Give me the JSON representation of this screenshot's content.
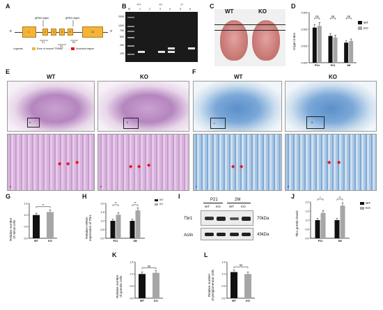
{
  "panels": {
    "A": "A",
    "B": "B",
    "C": "C",
    "D": "D",
    "E": "E",
    "F": "F",
    "G": "G",
    "H": "H",
    "I": "I",
    "J": "J",
    "K": "K",
    "L": "L"
  },
  "panelA": {
    "exons": [
      "1",
      "2",
      "3",
      "4",
      "5",
      "12"
    ],
    "grna1": "gRNA region",
    "grna2": "gRNA region",
    "primers": [
      "F1",
      "R1",
      "F2",
      "R2"
    ],
    "end5": "5'",
    "end3": "3'",
    "legend": [
      "Legends",
      "Exon of mouse TRIM67",
      "Knockout region"
    ]
  },
  "panelB": {
    "groups": [
      "+/+",
      "+/-",
      "-/-"
    ],
    "lanes": [
      "M",
      "1",
      "2",
      "3",
      "4",
      "5",
      "6"
    ],
    "ladder": [
      "2000",
      "1000",
      "750",
      "500",
      "250",
      "100"
    ]
  },
  "panelC": {
    "left": "WT",
    "right": "KO"
  },
  "panelD": {
    "ylabel": "Organ index",
    "legend": [
      "WT",
      "KO"
    ],
    "sig": [
      "ns",
      "ns",
      "ns"
    ]
  },
  "panelE": {
    "left": "WT",
    "right": "KO",
    "insets": [
      "a",
      "b",
      "a",
      "b"
    ]
  },
  "panelF": {
    "left": "WT",
    "right": "KO",
    "insets": [
      "c",
      "d",
      "c",
      "d"
    ]
  },
  "panelG": {
    "ylabel": "Relative number\nof mitral cells",
    "sig": "**"
  },
  "panelH": {
    "ylabel": "Relative mRNA\nexpression of Tbr1",
    "legend": [
      "WT",
      "KO"
    ],
    "sig": [
      "**",
      "**"
    ]
  },
  "panelI": {
    "groups": [
      "P21",
      "2M"
    ],
    "lanes": [
      "WT",
      "KO",
      "WT",
      "KO"
    ],
    "rows": [
      "Tbr1",
      "Actin"
    ],
    "sizes": [
      "70kDa",
      "43kDa"
    ]
  },
  "panelJ": {
    "ylabel": "Tbr1 protein levels",
    "legend": [
      "WT",
      "KO"
    ],
    "sig": [
      "*",
      "**"
    ]
  },
  "panelK": {
    "ylabel": "Relative number\nof granule cells",
    "sig": "ns"
  },
  "panelL": {
    "ylabel": "Relative number\nof periglomerular cells",
    "sig": "ns"
  },
  "colors": {
    "wt": "#111111",
    "ko": "#a6a6a6",
    "he": "#c08ec6",
    "nissl": "#5b8fc8",
    "arrow": "#e8121b"
  },
  "chart_data": [
    {
      "type": "bar",
      "panel": "D",
      "ylabel": "Organ index",
      "categories": [
        "P14",
        "P21",
        "1M"
      ],
      "ylim": [
        0,
        0.003
      ],
      "series": [
        {
          "name": "WT",
          "values": [
            0.0021,
            0.0016,
            0.0012
          ]
        },
        {
          "name": "KO",
          "values": [
            0.0022,
            0.0015,
            0.0013
          ]
        }
      ]
    },
    {
      "type": "bar",
      "panel": "G",
      "ylabel": "Relative number of mitral cells",
      "categories": [
        "WT",
        "KO"
      ],
      "ylim": [
        0,
        1.5
      ],
      "values": [
        1.0,
        1.13
      ]
    },
    {
      "type": "bar",
      "panel": "H",
      "ylabel": "Relative mRNA expression of Tbr1",
      "categories": [
        "P21",
        "2M"
      ],
      "ylim": [
        0,
        2.0
      ],
      "series": [
        {
          "name": "WT",
          "values": [
            1.0,
            1.0
          ]
        },
        {
          "name": "KO",
          "values": [
            1.35,
            1.6
          ]
        }
      ]
    },
    {
      "type": "bar",
      "panel": "J",
      "ylabel": "Tbr1 protein levels",
      "categories": [
        "P21",
        "2M"
      ],
      "ylim": [
        0,
        2.0
      ],
      "series": [
        {
          "name": "WT",
          "values": [
            1.0,
            1.0
          ]
        },
        {
          "name": "KO",
          "values": [
            1.4,
            1.8
          ]
        }
      ]
    },
    {
      "type": "bar",
      "panel": "K",
      "ylabel": "Relative number of granule cells",
      "categories": [
        "WT",
        "KO"
      ],
      "ylim": [
        0,
        1.5
      ],
      "values": [
        1.0,
        1.05
      ]
    },
    {
      "type": "bar",
      "panel": "L",
      "ylabel": "Relative number of periglomerular cells",
      "categories": [
        "WT",
        "KO"
      ],
      "ylim": [
        0,
        1.5
      ],
      "values": [
        1.08,
        1.0
      ]
    }
  ]
}
